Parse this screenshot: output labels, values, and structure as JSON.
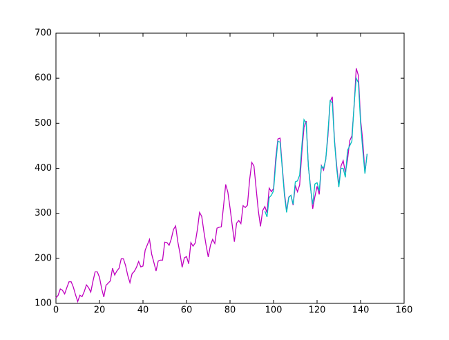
{
  "chart_data": {
    "type": "line",
    "xlim": [
      0,
      160
    ],
    "xticks": [
      0,
      20,
      40,
      60,
      80,
      100,
      120,
      140,
      160
    ],
    "ylim": [
      100,
      700
    ],
    "yticks": [
      100,
      200,
      300,
      400,
      500,
      600,
      700
    ],
    "grid": false,
    "series": [
      {
        "color": "#bf00bf",
        "x": [
          0,
          1,
          2,
          3,
          4,
          5,
          6,
          7,
          8,
          9,
          10,
          11,
          12,
          13,
          14,
          15,
          16,
          17,
          18,
          19,
          20,
          21,
          22,
          23,
          24,
          25,
          26,
          27,
          28,
          29,
          30,
          31,
          32,
          33,
          34,
          35,
          36,
          37,
          38,
          39,
          40,
          41,
          42,
          43,
          44,
          45,
          46,
          47,
          48,
          49,
          50,
          51,
          52,
          53,
          54,
          55,
          56,
          57,
          58,
          59,
          60,
          61,
          62,
          63,
          64,
          65,
          66,
          67,
          68,
          69,
          70,
          71,
          72,
          73,
          74,
          75,
          76,
          77,
          78,
          79,
          80,
          81,
          82,
          83,
          84,
          85,
          86,
          87,
          88,
          89,
          90,
          91,
          92,
          93,
          94,
          95,
          96,
          97,
          98,
          99,
          100,
          101,
          102,
          103,
          104,
          105,
          106,
          107,
          108,
          109,
          110,
          111,
          112,
          113,
          114,
          115,
          116,
          117,
          118,
          119,
          120,
          121,
          122,
          123,
          124,
          125,
          126,
          127,
          128,
          129,
          130,
          131,
          132,
          133,
          134,
          135,
          136,
          137,
          138,
          139,
          140,
          141,
          142,
          143
        ],
        "values": [
          112,
          118,
          132,
          129,
          121,
          135,
          148,
          148,
          136,
          119,
          104,
          118,
          115,
          126,
          141,
          135,
          125,
          149,
          170,
          170,
          158,
          133,
          114,
          140,
          145,
          150,
          178,
          163,
          172,
          178,
          199,
          199,
          184,
          162,
          146,
          166,
          171,
          180,
          193,
          181,
          183,
          218,
          230,
          242,
          209,
          191,
          172,
          194,
          196,
          196,
          236,
          235,
          229,
          243,
          264,
          272,
          237,
          211,
          180,
          201,
          204,
          188,
          235,
          227,
          234,
          264,
          302,
          293,
          259,
          229,
          203,
          229,
          242,
          233,
          267,
          269,
          270,
          315,
          364,
          347,
          312,
          274,
          237,
          278,
          284,
          277,
          317,
          313,
          318,
          374,
          413,
          405,
          355,
          306,
          271,
          306,
          315,
          301,
          356,
          348,
          355,
          422,
          465,
          467,
          404,
          347,
          305,
          336,
          340,
          318,
          362,
          348,
          363,
          435,
          491,
          505,
          404,
          359,
          310,
          337,
          360,
          342,
          406,
          396,
          420,
          472,
          548,
          559,
          463,
          407,
          362,
          405,
          417,
          391,
          419,
          461,
          472,
          535,
          622,
          606,
          508,
          461,
          390,
          432
        ]
      },
      {
        "color": "#00bfbf",
        "x": [
          96,
          97,
          98,
          99,
          100,
          101,
          102,
          103,
          104,
          105,
          106,
          107,
          108,
          109,
          110,
          111,
          112,
          113,
          114,
          115,
          116,
          117,
          118,
          119,
          120,
          121,
          122,
          123,
          124,
          125,
          126,
          127,
          128,
          129,
          130,
          131,
          132,
          133,
          134,
          135,
          136,
          137,
          138,
          139,
          140,
          141,
          142,
          143
        ],
        "values": [
          305,
          292,
          335,
          340,
          350,
          410,
          460,
          458,
          400,
          340,
          302,
          335,
          340,
          320,
          370,
          372,
          385,
          450,
          508,
          500,
          405,
          355,
          320,
          365,
          368,
          350,
          405,
          400,
          420,
          480,
          550,
          545,
          460,
          400,
          358,
          400,
          400,
          380,
          440,
          450,
          460,
          540,
          600,
          590,
          500,
          440,
          388,
          432
        ]
      }
    ]
  }
}
